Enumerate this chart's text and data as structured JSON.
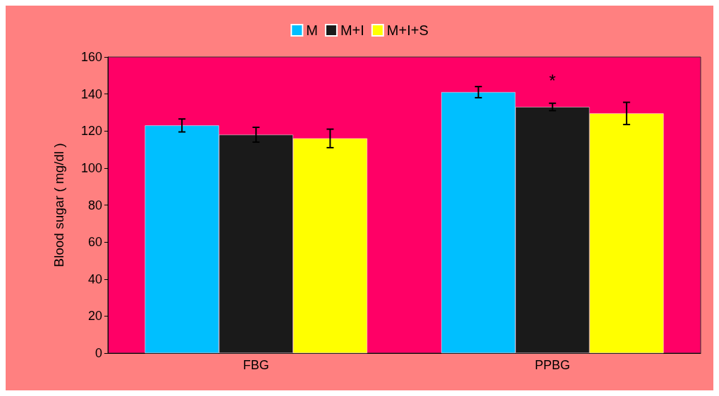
{
  "chart_data": {
    "type": "bar",
    "ylabel": "Blood sugar ( mg/dl )",
    "categories": [
      "FBG",
      "PPBG"
    ],
    "series": [
      {
        "name": "M",
        "color": "#00bfff",
        "values": [
          123,
          141
        ],
        "errors": [
          3.5,
          3
        ]
      },
      {
        "name": "M+I",
        "color": "#1a1a1a",
        "values": [
          118,
          133
        ],
        "errors": [
          4,
          2
        ]
      },
      {
        "name": "M+I+S",
        "color": "#ffff00",
        "values": [
          116,
          129.5
        ],
        "errors": [
          5,
          6
        ]
      }
    ],
    "ylim": [
      0,
      160
    ],
    "yticks": [
      0,
      20,
      40,
      60,
      80,
      100,
      120,
      140,
      160
    ],
    "grid": false,
    "legend": "top",
    "annotations": [
      {
        "text": "*",
        "x": "PPBG",
        "y": 133
      }
    ]
  }
}
